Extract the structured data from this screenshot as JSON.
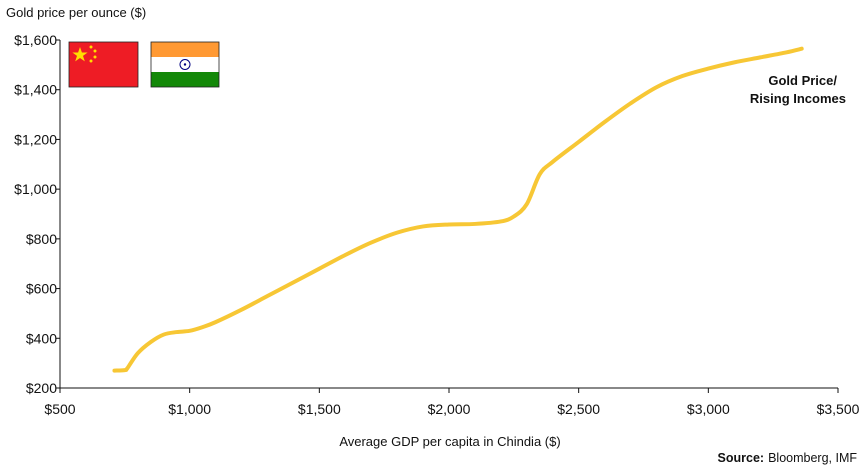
{
  "chart_data": {
    "type": "line",
    "ylabel": "Gold price per ounce ($)",
    "xlabel": "Average GDP per capita in Chindia ($)",
    "xlim": [
      500,
      3500
    ],
    "ylim": [
      200,
      1600
    ],
    "x_ticks": [
      500,
      1000,
      1500,
      2000,
      2500,
      3000,
      3500
    ],
    "x_tick_labels": [
      "$500",
      "$1,000",
      "$1,500",
      "$2,000",
      "$2,500",
      "$3,000",
      "$3,500"
    ],
    "y_ticks": [
      200,
      400,
      600,
      800,
      1000,
      1200,
      1400,
      1600
    ],
    "y_tick_labels": [
      "$200",
      "$400",
      "$600",
      "$800",
      "$1,000",
      "$1,200",
      "$1,400",
      "$1,600"
    ],
    "grid": false,
    "series": [
      {
        "name": "Gold Price/\nRising Incomes",
        "color": "#F7C735",
        "x": [
          710,
          750,
          760,
          800,
          850,
          900,
          950,
          1000,
          1050,
          1100,
          1200,
          1300,
          1400,
          1500,
          1600,
          1700,
          1800,
          1900,
          2000,
          2100,
          2200,
          2250,
          2300,
          2350,
          2400,
          2500,
          2600,
          2700,
          2800,
          2900,
          3000,
          3100,
          3200,
          3300,
          3360
        ],
        "values": [
          270,
          272,
          280,
          340,
          385,
          415,
          425,
          430,
          445,
          465,
          515,
          570,
          625,
          680,
          735,
          785,
          825,
          850,
          858,
          860,
          870,
          890,
          940,
          1060,
          1110,
          1190,
          1270,
          1345,
          1410,
          1455,
          1485,
          1510,
          1530,
          1550,
          1565
        ]
      }
    ],
    "annotation": {
      "line1": "Gold Price/",
      "line2": "Rising Incomes"
    }
  },
  "flags": [
    {
      "country": "China",
      "icon": "china-flag-icon",
      "red": "#EE1C25",
      "yellow": "#FFDE00"
    },
    {
      "country": "India",
      "icon": "india-flag-icon",
      "saffron": "#FF9933",
      "white": "#FFFFFF",
      "green": "#138808",
      "chakra": "#000080"
    }
  ],
  "source": {
    "label": "Source:",
    "text": "Bloomberg, IMF"
  }
}
